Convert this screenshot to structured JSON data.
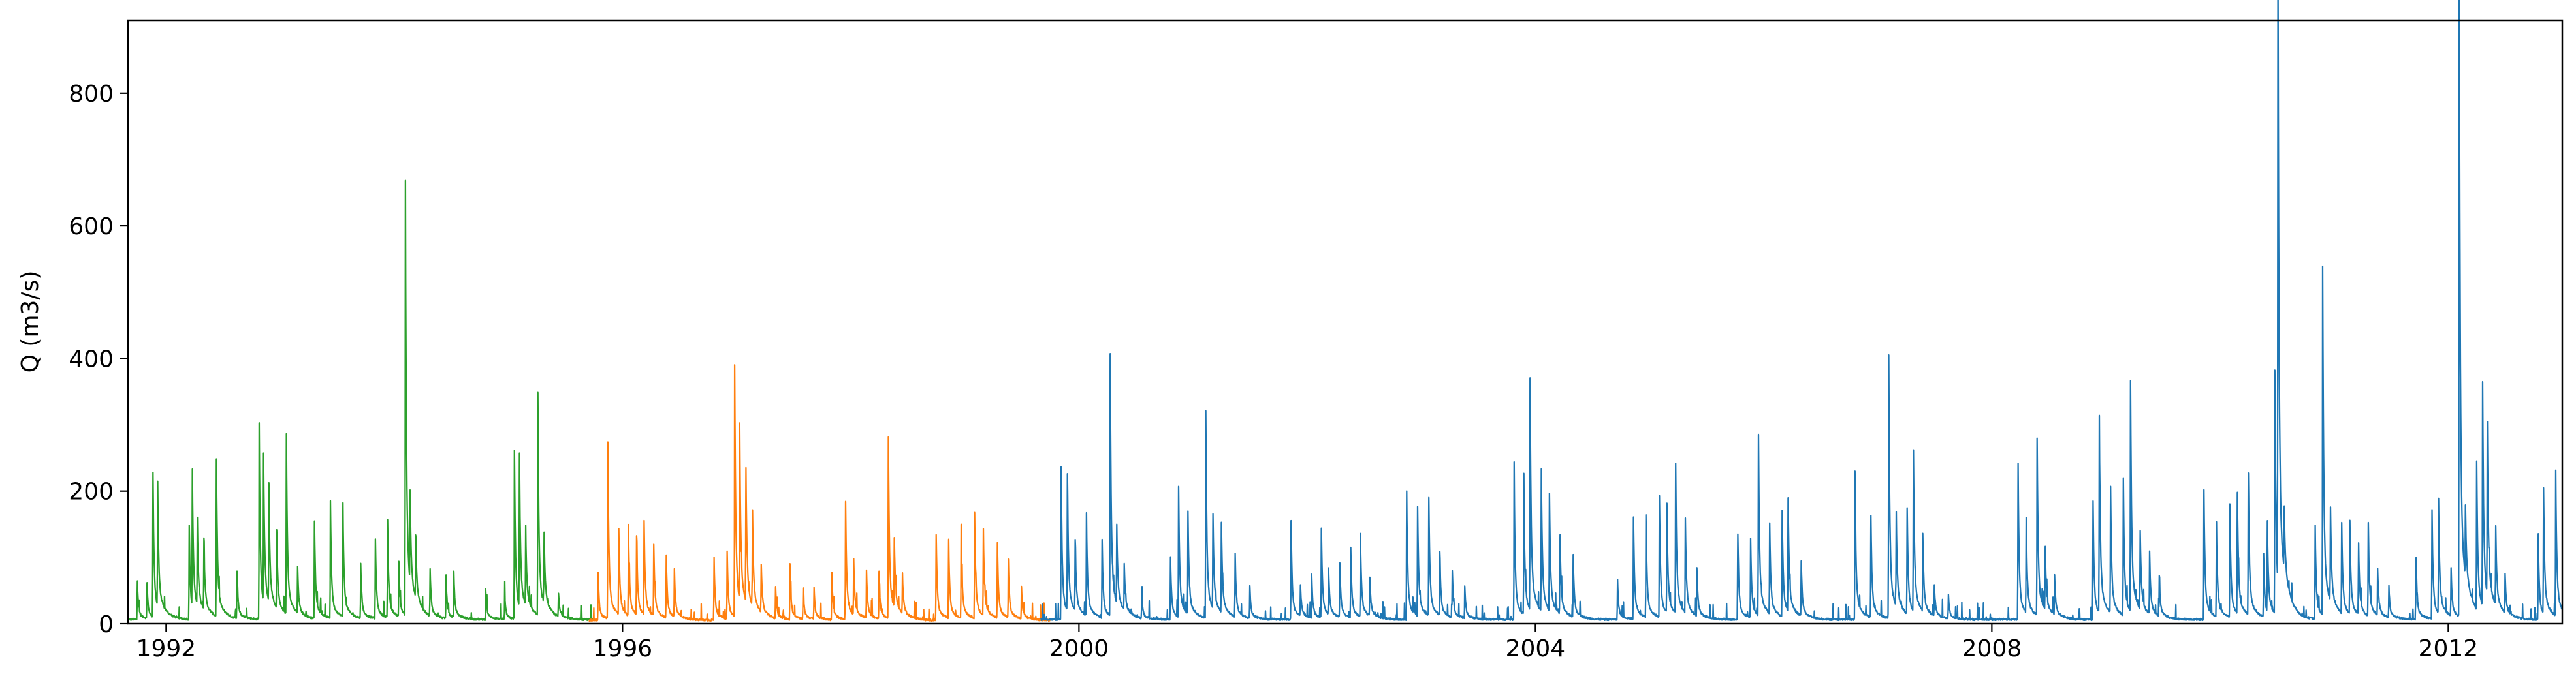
{
  "chart_data": {
    "type": "line",
    "title": "",
    "xlabel": "",
    "ylabel": "Q (m3/s)",
    "xlim": [
      "1991-09-01",
      "2012-12-31"
    ],
    "ylim": [
      0,
      910
    ],
    "x_ticks": [
      "1992",
      "1996",
      "2000",
      "2004",
      "2008",
      "2012"
    ],
    "y_ticks": [
      "0",
      "200",
      "400",
      "600",
      "800"
    ],
    "grid": false,
    "legend": "none",
    "series": [
      {
        "color": "#2ca02c",
        "start": "1991-09-01",
        "end": "1995-09-30",
        "baseflow": 5,
        "peaks": [
          [
            "1991-10-01",
            50
          ],
          [
            "1991-11-01",
            45
          ],
          [
            "1991-11-20",
            185
          ],
          [
            "1991-12-05",
            160
          ],
          [
            "1992-03-15",
            120
          ],
          [
            "1992-03-25",
            175
          ],
          [
            "1992-04-10",
            110
          ],
          [
            "1992-05-01",
            90
          ],
          [
            "1992-06-10",
            200
          ],
          [
            "1992-08-15",
            60
          ],
          [
            "1992-10-25",
            250
          ],
          [
            "1992-11-08",
            190
          ],
          [
            "1992-11-25",
            150
          ],
          [
            "1992-12-20",
            100
          ],
          [
            "1993-01-20",
            230
          ],
          [
            "1993-02-25",
            60
          ],
          [
            "1993-04-20",
            125
          ],
          [
            "1993-06-10",
            150
          ],
          [
            "1993-07-20",
            145
          ],
          [
            "1993-09-15",
            70
          ],
          [
            "1993-11-01",
            100
          ],
          [
            "1993-12-10",
            125
          ],
          [
            "1994-01-15",
            70
          ],
          [
            "1994-02-05",
            555
          ],
          [
            "1994-02-20",
            115
          ],
          [
            "1994-03-10",
            80
          ],
          [
            "1994-04-25",
            60
          ],
          [
            "1994-06-15",
            55
          ],
          [
            "1994-07-10",
            55
          ],
          [
            "1994-10-20",
            40
          ],
          [
            "1994-12-20",
            30
          ],
          [
            "1995-01-20",
            215
          ],
          [
            "1995-02-05",
            195
          ],
          [
            "1995-02-25",
            100
          ],
          [
            "1995-04-05",
            285
          ],
          [
            "1995-04-25",
            90
          ],
          [
            "1995-06-10",
            30
          ]
        ]
      },
      {
        "color": "#ff7f0e",
        "start": "1995-09-15",
        "end": "1999-10-01",
        "baseflow": 4,
        "peaks": [
          [
            "1995-10-15",
            60
          ],
          [
            "1995-11-15",
            225
          ],
          [
            "1995-12-20",
            110
          ],
          [
            "1996-01-20",
            115
          ],
          [
            "1996-02-15",
            100
          ],
          [
            "1996-03-10",
            120
          ],
          [
            "1996-04-10",
            90
          ],
          [
            "1996-05-20",
            80
          ],
          [
            "1996-06-15",
            60
          ],
          [
            "1996-10-20",
            80
          ],
          [
            "1996-12-01",
            85
          ],
          [
            "1996-12-25",
            320
          ],
          [
            "1997-01-10",
            225
          ],
          [
            "1997-01-30",
            170
          ],
          [
            "1997-02-20",
            120
          ],
          [
            "1997-03-20",
            60
          ],
          [
            "1997-05-05",
            40
          ],
          [
            "1997-06-20",
            70
          ],
          [
            "1997-08-01",
            40
          ],
          [
            "1997-09-05",
            40
          ],
          [
            "1997-11-01",
            60
          ],
          [
            "1997-12-15",
            150
          ],
          [
            "1998-01-10",
            70
          ],
          [
            "1998-02-20",
            60
          ],
          [
            "1998-04-01",
            60
          ],
          [
            "1998-05-01",
            230
          ],
          [
            "1998-05-20",
            90
          ],
          [
            "1998-06-15",
            50
          ],
          [
            "1998-10-01",
            110
          ],
          [
            "1998-11-10",
            100
          ],
          [
            "1998-12-20",
            110
          ],
          [
            "1999-02-01",
            135
          ],
          [
            "1999-03-01",
            110
          ],
          [
            "1999-04-15",
            95
          ],
          [
            "1999-05-20",
            70
          ],
          [
            "1999-07-01",
            40
          ]
        ]
      },
      {
        "color": "#1f77b4",
        "start": "1999-09-01",
        "end": "2012-12-31",
        "baseflow": 5,
        "peaks": [
          [
            "1999-11-05",
            195
          ],
          [
            "1999-11-25",
            175
          ],
          [
            "1999-12-20",
            90
          ],
          [
            "2000-01-25",
            130
          ],
          [
            "2000-03-15",
            100
          ],
          [
            "2000-04-10",
            335
          ],
          [
            "2000-05-01",
            100
          ],
          [
            "2000-05-25",
            60
          ],
          [
            "2000-07-20",
            30
          ],
          [
            "2000-10-20",
            80
          ],
          [
            "2000-11-15",
            165
          ],
          [
            "2000-12-15",
            130
          ],
          [
            "2001-02-10",
            265
          ],
          [
            "2001-03-05",
            120
          ],
          [
            "2001-04-01",
            115
          ],
          [
            "2001-05-15",
            80
          ],
          [
            "2001-07-01",
            40
          ],
          [
            "2001-11-10",
            125
          ],
          [
            "2001-12-10",
            40
          ],
          [
            "2002-01-15",
            55
          ],
          [
            "2002-02-15",
            115
          ],
          [
            "2002-03-10",
            60
          ],
          [
            "2002-04-15",
            70
          ],
          [
            "2002-05-20",
            90
          ],
          [
            "2002-06-20",
            105
          ],
          [
            "2002-07-20",
            50
          ],
          [
            "2002-11-15",
            165
          ],
          [
            "2002-12-20",
            140
          ],
          [
            "2003-01-25",
            150
          ],
          [
            "2003-03-01",
            80
          ],
          [
            "2003-04-10",
            60
          ],
          [
            "2003-05-20",
            40
          ],
          [
            "2003-10-25",
            185
          ],
          [
            "2003-11-25",
            160
          ],
          [
            "2003-12-15",
            295
          ],
          [
            "2004-01-20",
            180
          ],
          [
            "2004-02-15",
            150
          ],
          [
            "2004-03-20",
            100
          ],
          [
            "2004-05-01",
            80
          ],
          [
            "2004-09-20",
            50
          ],
          [
            "2004-11-10",
            130
          ],
          [
            "2004-12-20",
            130
          ],
          [
            "2005-02-01",
            155
          ],
          [
            "2005-02-25",
            140
          ],
          [
            "2005-03-25",
            190
          ],
          [
            "2005-04-25",
            120
          ],
          [
            "2005-06-01",
            60
          ],
          [
            "2005-10-10",
            110
          ],
          [
            "2005-11-20",
            100
          ],
          [
            "2005-12-15",
            230
          ],
          [
            "2006-01-20",
            115
          ],
          [
            "2006-03-01",
            135
          ],
          [
            "2006-03-20",
            145
          ],
          [
            "2006-05-01",
            70
          ],
          [
            "2006-10-20",
            190
          ],
          [
            "2006-12-10",
            130
          ],
          [
            "2007-02-05",
            335
          ],
          [
            "2007-03-01",
            120
          ],
          [
            "2007-04-05",
            135
          ],
          [
            "2007-04-25",
            205
          ],
          [
            "2007-05-25",
            100
          ],
          [
            "2007-07-01",
            40
          ],
          [
            "2007-08-15",
            30
          ],
          [
            "2008-03-25",
            200
          ],
          [
            "2008-04-20",
            120
          ],
          [
            "2008-05-25",
            225
          ],
          [
            "2008-06-20",
            80
          ],
          [
            "2008-07-20",
            50
          ],
          [
            "2008-11-20",
            150
          ],
          [
            "2008-12-10",
            250
          ],
          [
            "2009-01-15",
            160
          ],
          [
            "2009-02-25",
            175
          ],
          [
            "2009-03-20",
            295
          ],
          [
            "2009-04-20",
            100
          ],
          [
            "2009-05-20",
            80
          ],
          [
            "2009-06-20",
            50
          ],
          [
            "2009-11-10",
            165
          ],
          [
            "2009-12-20",
            120
          ],
          [
            "2010-02-01",
            145
          ],
          [
            "2010-02-25",
            155
          ],
          [
            "2010-04-01",
            180
          ],
          [
            "2010-05-20",
            80
          ],
          [
            "2010-06-01",
            115
          ],
          [
            "2010-06-25",
            310
          ],
          [
            "2010-07-05",
            790
          ],
          [
            "2010-07-25",
            80
          ],
          [
            "2010-11-01",
            120
          ],
          [
            "2010-11-25",
            445
          ],
          [
            "2010-12-20",
            120
          ],
          [
            "2011-01-25",
            115
          ],
          [
            "2011-02-20",
            120
          ],
          [
            "2011-03-20",
            90
          ],
          [
            "2011-04-20",
            120
          ],
          [
            "2011-05-20",
            60
          ],
          [
            "2011-06-25",
            40
          ],
          [
            "2011-09-20",
            80
          ],
          [
            "2011-11-10",
            140
          ],
          [
            "2011-12-01",
            145
          ],
          [
            "2012-01-10",
            60
          ],
          [
            "2012-02-05",
            870
          ],
          [
            "2012-02-25",
            90
          ],
          [
            "2012-04-01",
            190
          ],
          [
            "2012-04-20",
            285
          ],
          [
            "2012-05-05",
            220
          ],
          [
            "2012-06-01",
            100
          ],
          [
            "2012-07-01",
            50
          ],
          [
            "2012-10-15",
            110
          ],
          [
            "2012-11-01",
            160
          ],
          [
            "2012-12-10",
            185
          ]
        ]
      }
    ]
  }
}
